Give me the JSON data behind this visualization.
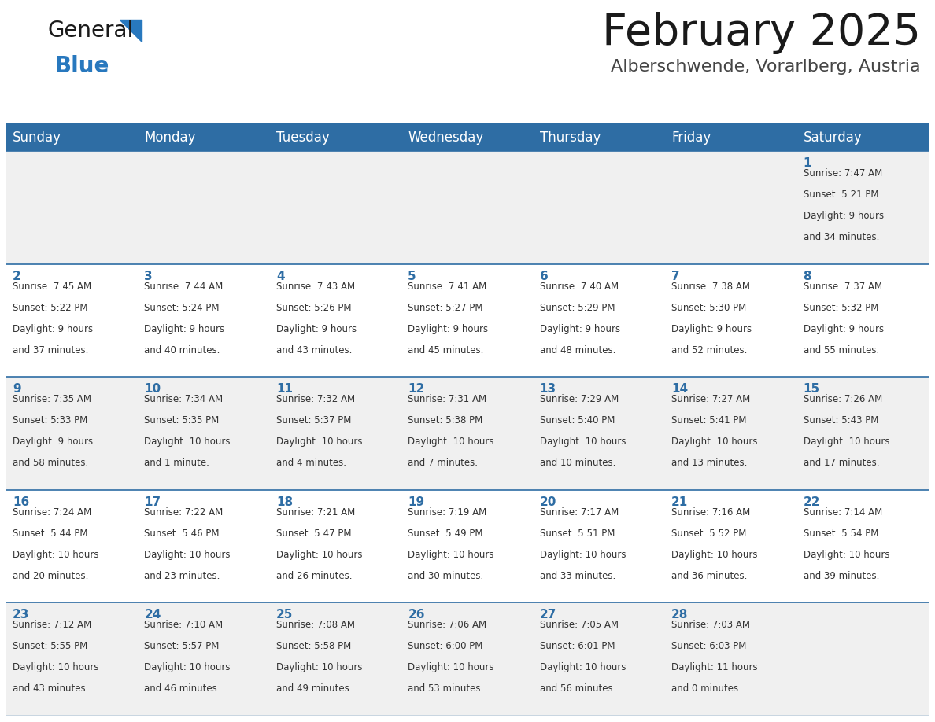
{
  "title": "February 2025",
  "subtitle": "Alberschwende, Vorarlberg, Austria",
  "days_of_week": [
    "Sunday",
    "Monday",
    "Tuesday",
    "Wednesday",
    "Thursday",
    "Friday",
    "Saturday"
  ],
  "header_bg_color": "#2E6DA4",
  "header_text_color": "#FFFFFF",
  "row_bg_even": "#F0F0F0",
  "row_bg_odd": "#FFFFFF",
  "cell_border_color": "#2E6DA4",
  "day_number_color": "#2E6DA4",
  "info_text_color": "#333333",
  "title_color": "#1a1a1a",
  "subtitle_color": "#444444",
  "logo_general_color": "#1a1a1a",
  "logo_blue_color": "#2878BE",
  "calendar_data": [
    [
      {
        "day": null,
        "info": ""
      },
      {
        "day": null,
        "info": ""
      },
      {
        "day": null,
        "info": ""
      },
      {
        "day": null,
        "info": ""
      },
      {
        "day": null,
        "info": ""
      },
      {
        "day": null,
        "info": ""
      },
      {
        "day": 1,
        "info": "Sunrise: 7:47 AM\nSunset: 5:21 PM\nDaylight: 9 hours\nand 34 minutes."
      }
    ],
    [
      {
        "day": 2,
        "info": "Sunrise: 7:45 AM\nSunset: 5:22 PM\nDaylight: 9 hours\nand 37 minutes."
      },
      {
        "day": 3,
        "info": "Sunrise: 7:44 AM\nSunset: 5:24 PM\nDaylight: 9 hours\nand 40 minutes."
      },
      {
        "day": 4,
        "info": "Sunrise: 7:43 AM\nSunset: 5:26 PM\nDaylight: 9 hours\nand 43 minutes."
      },
      {
        "day": 5,
        "info": "Sunrise: 7:41 AM\nSunset: 5:27 PM\nDaylight: 9 hours\nand 45 minutes."
      },
      {
        "day": 6,
        "info": "Sunrise: 7:40 AM\nSunset: 5:29 PM\nDaylight: 9 hours\nand 48 minutes."
      },
      {
        "day": 7,
        "info": "Sunrise: 7:38 AM\nSunset: 5:30 PM\nDaylight: 9 hours\nand 52 minutes."
      },
      {
        "day": 8,
        "info": "Sunrise: 7:37 AM\nSunset: 5:32 PM\nDaylight: 9 hours\nand 55 minutes."
      }
    ],
    [
      {
        "day": 9,
        "info": "Sunrise: 7:35 AM\nSunset: 5:33 PM\nDaylight: 9 hours\nand 58 minutes."
      },
      {
        "day": 10,
        "info": "Sunrise: 7:34 AM\nSunset: 5:35 PM\nDaylight: 10 hours\nand 1 minute."
      },
      {
        "day": 11,
        "info": "Sunrise: 7:32 AM\nSunset: 5:37 PM\nDaylight: 10 hours\nand 4 minutes."
      },
      {
        "day": 12,
        "info": "Sunrise: 7:31 AM\nSunset: 5:38 PM\nDaylight: 10 hours\nand 7 minutes."
      },
      {
        "day": 13,
        "info": "Sunrise: 7:29 AM\nSunset: 5:40 PM\nDaylight: 10 hours\nand 10 minutes."
      },
      {
        "day": 14,
        "info": "Sunrise: 7:27 AM\nSunset: 5:41 PM\nDaylight: 10 hours\nand 13 minutes."
      },
      {
        "day": 15,
        "info": "Sunrise: 7:26 AM\nSunset: 5:43 PM\nDaylight: 10 hours\nand 17 minutes."
      }
    ],
    [
      {
        "day": 16,
        "info": "Sunrise: 7:24 AM\nSunset: 5:44 PM\nDaylight: 10 hours\nand 20 minutes."
      },
      {
        "day": 17,
        "info": "Sunrise: 7:22 AM\nSunset: 5:46 PM\nDaylight: 10 hours\nand 23 minutes."
      },
      {
        "day": 18,
        "info": "Sunrise: 7:21 AM\nSunset: 5:47 PM\nDaylight: 10 hours\nand 26 minutes."
      },
      {
        "day": 19,
        "info": "Sunrise: 7:19 AM\nSunset: 5:49 PM\nDaylight: 10 hours\nand 30 minutes."
      },
      {
        "day": 20,
        "info": "Sunrise: 7:17 AM\nSunset: 5:51 PM\nDaylight: 10 hours\nand 33 minutes."
      },
      {
        "day": 21,
        "info": "Sunrise: 7:16 AM\nSunset: 5:52 PM\nDaylight: 10 hours\nand 36 minutes."
      },
      {
        "day": 22,
        "info": "Sunrise: 7:14 AM\nSunset: 5:54 PM\nDaylight: 10 hours\nand 39 minutes."
      }
    ],
    [
      {
        "day": 23,
        "info": "Sunrise: 7:12 AM\nSunset: 5:55 PM\nDaylight: 10 hours\nand 43 minutes."
      },
      {
        "day": 24,
        "info": "Sunrise: 7:10 AM\nSunset: 5:57 PM\nDaylight: 10 hours\nand 46 minutes."
      },
      {
        "day": 25,
        "info": "Sunrise: 7:08 AM\nSunset: 5:58 PM\nDaylight: 10 hours\nand 49 minutes."
      },
      {
        "day": 26,
        "info": "Sunrise: 7:06 AM\nSunset: 6:00 PM\nDaylight: 10 hours\nand 53 minutes."
      },
      {
        "day": 27,
        "info": "Sunrise: 7:05 AM\nSunset: 6:01 PM\nDaylight: 10 hours\nand 56 minutes."
      },
      {
        "day": 28,
        "info": "Sunrise: 7:03 AM\nSunset: 6:03 PM\nDaylight: 11 hours\nand 0 minutes."
      },
      {
        "day": null,
        "info": ""
      }
    ]
  ]
}
